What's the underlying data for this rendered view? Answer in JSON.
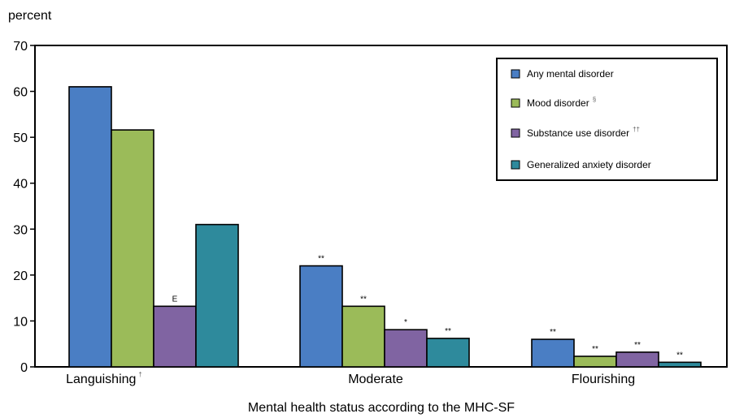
{
  "chart_data": {
    "type": "bar",
    "title": "",
    "ylabel": "percent",
    "xlabel": "Mental health status according to the MHC-SF",
    "ylim": [
      0,
      70
    ],
    "yticks": [
      0,
      10,
      20,
      30,
      40,
      50,
      60,
      70
    ],
    "grid": false,
    "legend_position": "top-right",
    "categories": [
      {
        "label": "Languishing",
        "sup": "†"
      },
      {
        "label": "Moderate",
        "sup": ""
      },
      {
        "label": "Flourishing",
        "sup": ""
      }
    ],
    "series": [
      {
        "name": "Any mental disorder",
        "sup": "",
        "color": "#4a7ec4",
        "values": [
          61,
          22,
          6
        ],
        "annotations": [
          "",
          "**",
          "**"
        ]
      },
      {
        "name": "Mood disorder",
        "sup": "§",
        "color": "#9bbb59",
        "values": [
          51.6,
          13.2,
          2.3
        ],
        "annotations": [
          "",
          "**",
          "**"
        ]
      },
      {
        "name": "Substance use disorder",
        "sup": "††",
        "color": "#8064a2",
        "values": [
          13.2,
          8.1,
          3.2
        ],
        "annotations": [
          "E",
          "*",
          "**"
        ]
      },
      {
        "name": "Generalized anxiety disorder",
        "sup": "",
        "color": "#2e8a9c",
        "values": [
          31,
          6.2,
          1
        ],
        "annotations": [
          "",
          "**",
          "**"
        ]
      }
    ]
  }
}
